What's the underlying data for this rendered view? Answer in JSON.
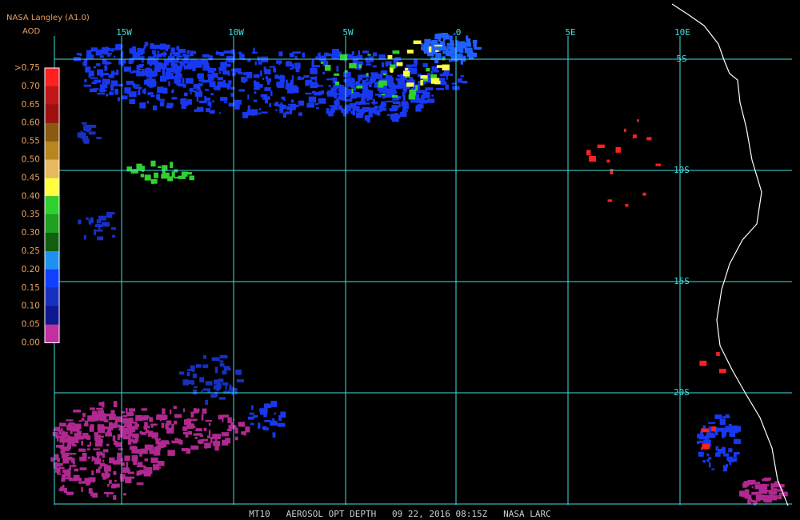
{
  "header": {
    "title": "NASA Langley (A1.0)",
    "legend_title": "AOD"
  },
  "legend": {
    "labels": [
      ">0.75",
      "0.70",
      "0.65",
      "0.60",
      "0.55",
      "0.50",
      "0.45",
      "0.40",
      "0.35",
      "0.30",
      "0.25",
      "0.20",
      "0.15",
      "0.10",
      "0.05",
      "0.00"
    ],
    "colors": [
      "#ff2020",
      "#c01818",
      "#a01010",
      "#8b5a10",
      "#b8861e",
      "#e8b860",
      "#ffff40",
      "#30d030",
      "#20a020",
      "#106010",
      "#2090f0",
      "#1040ff",
      "#1830c0",
      "#101890",
      "#c030a0"
    ]
  },
  "grid": {
    "longitudes": [
      "15W",
      "10W",
      "5W",
      "0",
      "5E",
      "10E"
    ],
    "latitudes": [
      "5S",
      "10S",
      "15S",
      "20S"
    ]
  },
  "footer": "MT10   AEROSOL OPT DEPTH   09 22, 2016 08:15Z   NASA LARC"
}
